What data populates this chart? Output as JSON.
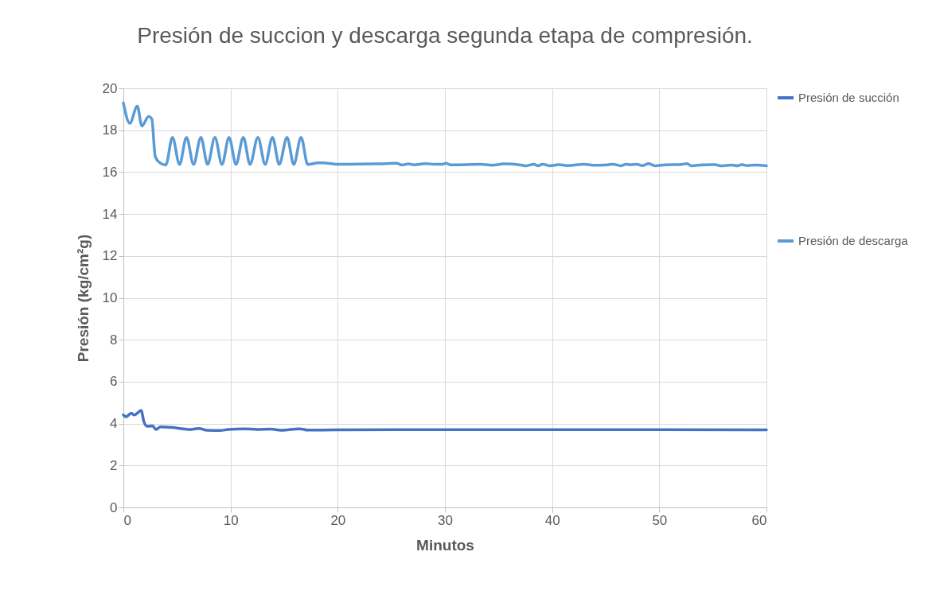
{
  "chart_data": {
    "type": "line",
    "title": "Presión de succion y descarga segunda etapa de compresión.",
    "xlabel": "Minutos",
    "ylabel": "Presión (kg/cm²g)",
    "xlim": [
      0,
      60
    ],
    "xticks": [
      0,
      10,
      20,
      30,
      40,
      50,
      60
    ],
    "ylim": [
      0,
      20
    ],
    "yticks": [
      0,
      2,
      4,
      6,
      8,
      10,
      12,
      14,
      16,
      18,
      20
    ],
    "grid": true,
    "legend": "right",
    "marker": "none",
    "line_style": "solid",
    "series": [
      {
        "name": "Presión de succión",
        "color": "#4472c4",
        "x": [
          0,
          0.25,
          0.74,
          0.99,
          1.24,
          1.66,
          1.91,
          2.23,
          2.72,
          3.04,
          3.46,
          4.58,
          5.57,
          6.3,
          7.05,
          7.79,
          9.03,
          9.77,
          11.26,
          12.5,
          13.73,
          14.72,
          16.46,
          17.2,
          19.7,
          30,
          40,
          50,
          60
        ],
        "values": [
          4.41,
          4.32,
          4.5,
          4.41,
          4.47,
          4.63,
          4.1,
          3.87,
          3.89,
          3.72,
          3.84,
          3.81,
          3.75,
          3.72,
          3.77,
          3.68,
          3.67,
          3.72,
          3.75,
          3.72,
          3.74,
          3.68,
          3.75,
          3.69,
          3.7,
          3.71,
          3.71,
          3.71,
          3.7
        ]
      },
      {
        "name": "Presión de descarga",
        "color": "#5b9bd5",
        "x": [
          0,
          0.6,
          1.3,
          1.73,
          2.35,
          2.65,
          2.97,
          3.34,
          3.96,
          4.58,
          5.24,
          5.89,
          6.55,
          7.23,
          7.86,
          8.54,
          9.2,
          9.86,
          10.51,
          11.19,
          11.82,
          12.55,
          13.23,
          13.91,
          14.54,
          15.27,
          15.9,
          16.58,
          17.2,
          18.19,
          18.6,
          19.8,
          20.9,
          23.6,
          25.5,
          26.0,
          26.6,
          27.1,
          28.2,
          29.0,
          29.8,
          30.1,
          30.5,
          31.4,
          33.3,
          34.4,
          35.5,
          37.1,
          37.6,
          38.3,
          38.7,
          39.1,
          39.8,
          40.6,
          41.4,
          43.0,
          43.8,
          45.2,
          45.7,
          46.4,
          46.9,
          47.3,
          47.9,
          48.4,
          49.0,
          49.6,
          50.6,
          51.9,
          52.6,
          53.0,
          54.1,
          55.2,
          55.7,
          56.8,
          57.3,
          57.7,
          58.2,
          59.0,
          60
        ],
        "values": [
          19.3,
          18.33,
          19.15,
          18.2,
          18.65,
          18.55,
          16.75,
          16.47,
          16.34,
          17.66,
          16.37,
          17.66,
          16.37,
          17.66,
          16.37,
          17.66,
          16.37,
          17.66,
          16.37,
          17.66,
          16.37,
          17.66,
          16.37,
          17.66,
          16.37,
          17.66,
          16.37,
          17.66,
          16.37,
          16.44,
          16.44,
          16.38,
          16.38,
          16.39,
          16.42,
          16.34,
          16.39,
          16.35,
          16.4,
          16.38,
          16.38,
          16.42,
          16.35,
          16.35,
          16.38,
          16.33,
          16.39,
          16.34,
          16.3,
          16.38,
          16.3,
          16.38,
          16.3,
          16.36,
          16.31,
          16.38,
          16.33,
          16.35,
          16.38,
          16.3,
          16.38,
          16.35,
          16.38,
          16.31,
          16.4,
          16.3,
          16.35,
          16.36,
          16.4,
          16.3,
          16.35,
          16.36,
          16.3,
          16.34,
          16.3,
          16.36,
          16.31,
          16.34,
          16.3
        ]
      }
    ]
  }
}
